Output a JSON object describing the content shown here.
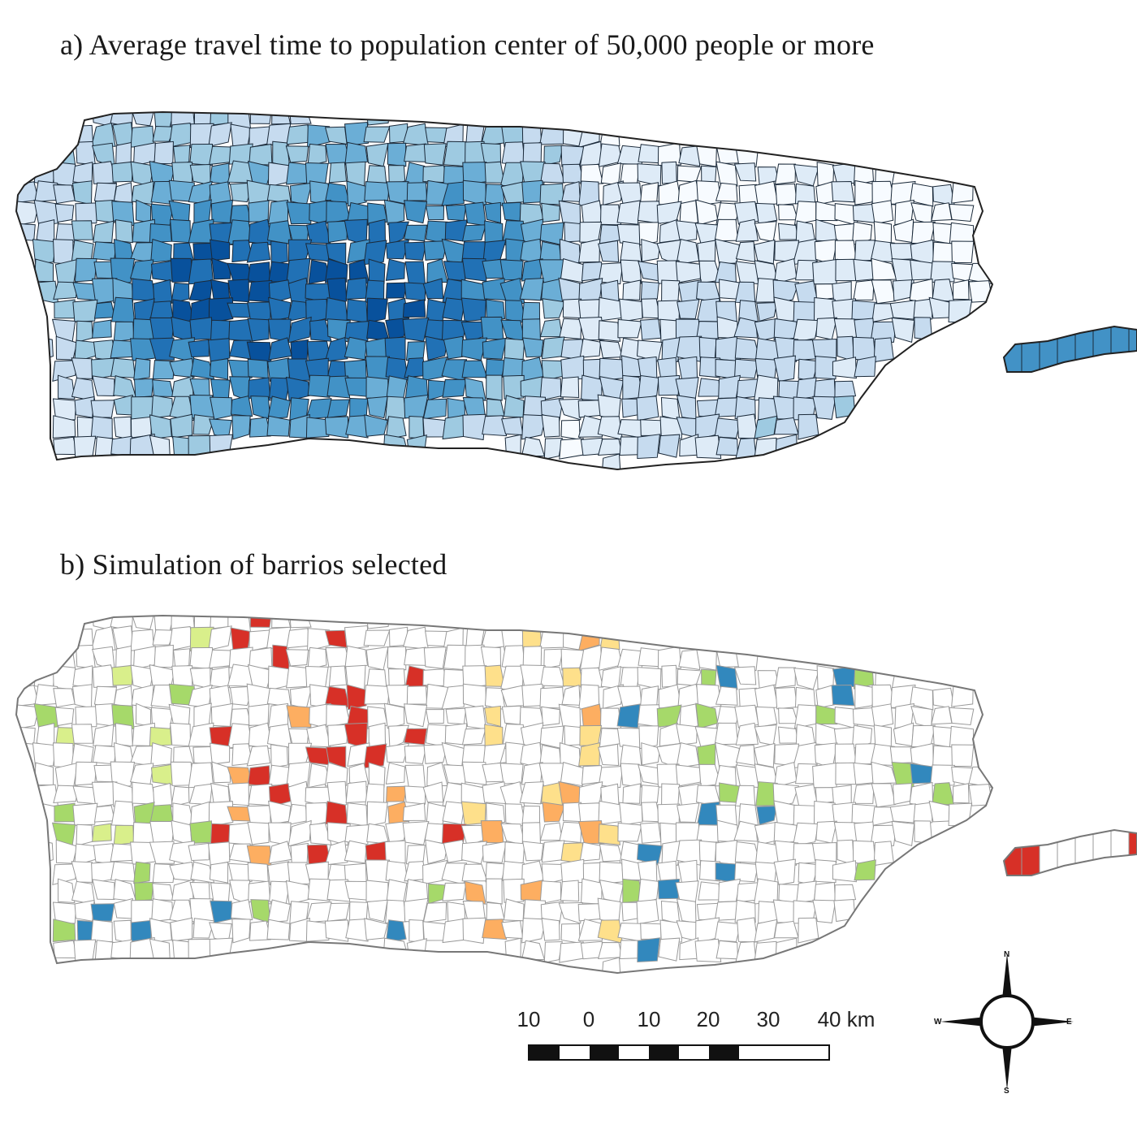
{
  "panel_a": {
    "title": "a) Average travel time to population center of 50,000 people or more",
    "palette": [
      "#f7fbff",
      "#deebf7",
      "#c6dbef",
      "#9ecae1",
      "#6baed6",
      "#4292c6",
      "#2171b5",
      "#08519c"
    ]
  },
  "panel_b": {
    "title": "b) Simulation of barrios selected",
    "palette": [
      "#d73027",
      "#f46d43",
      "#fdae61",
      "#fee08b",
      "#ffffbf",
      "#d9ef8b",
      "#a6d96a",
      "#66c2a5",
      "#3288bd",
      "#2c7bb6"
    ]
  },
  "scale_bar": {
    "labels": [
      "10",
      "0",
      "10",
      "20",
      "30",
      "40 km"
    ],
    "segments": [
      "black",
      "white",
      "black",
      "white",
      "black",
      "white",
      "black",
      "white",
      "white",
      "white"
    ]
  },
  "compass": {
    "north": "N",
    "south": "S",
    "east": "E",
    "west": "W"
  }
}
